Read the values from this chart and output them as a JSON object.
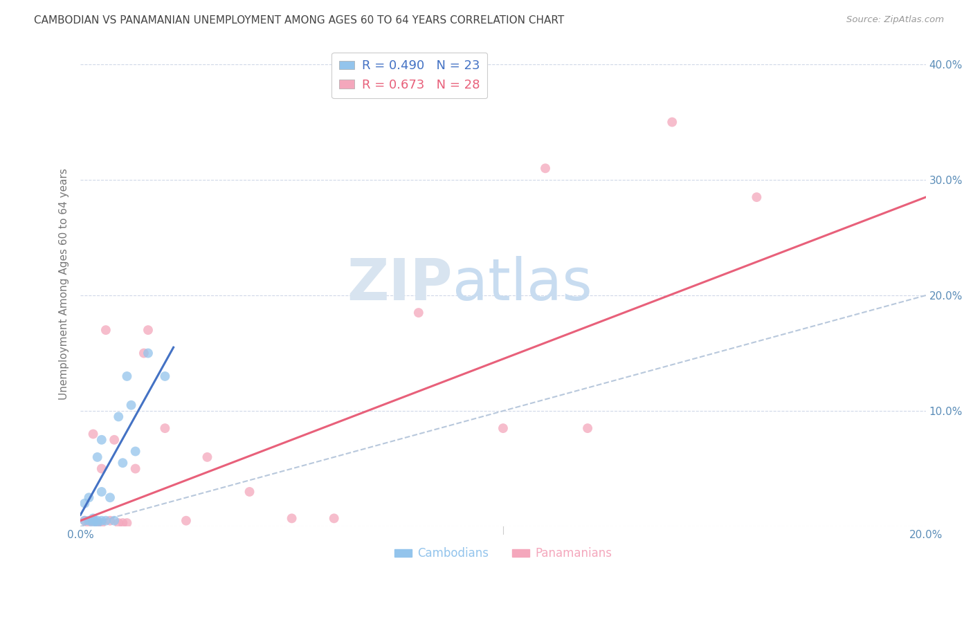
{
  "title": "CAMBODIAN VS PANAMANIAN UNEMPLOYMENT AMONG AGES 60 TO 64 YEARS CORRELATION CHART",
  "source": "Source: ZipAtlas.com",
  "ylabel": "Unemployment Among Ages 60 to 64 years",
  "xlim": [
    0.0,
    0.2
  ],
  "ylim": [
    0.0,
    0.42
  ],
  "yticks": [
    0.0,
    0.1,
    0.2,
    0.3,
    0.4
  ],
  "yticklabels_right": [
    "",
    "10.0%",
    "20.0%",
    "30.0%",
    "40.0%"
  ],
  "xtick_positions": [
    0.0,
    0.05,
    0.1,
    0.15,
    0.2
  ],
  "xticklabels": [
    "0.0%",
    "",
    "",
    "",
    "20.0%"
  ],
  "cambodian_R": 0.49,
  "cambodian_N": 23,
  "panamanian_R": 0.673,
  "panamanian_N": 28,
  "cambodian_color": "#93C4EC",
  "panamanian_color": "#F4A7BC",
  "cambodian_line_color": "#4472C4",
  "panamanian_line_color": "#E8607A",
  "diagonal_color": "#B8C8DC",
  "tick_color": "#5B8DB8",
  "background_color": "#FFFFFF",
  "grid_color": "#D0D8E8",
  "cambodian_x": [
    0.001,
    0.001,
    0.002,
    0.002,
    0.003,
    0.003,
    0.003,
    0.004,
    0.004,
    0.004,
    0.005,
    0.005,
    0.005,
    0.006,
    0.007,
    0.008,
    0.009,
    0.01,
    0.011,
    0.012,
    0.013,
    0.016,
    0.02
  ],
  "cambodian_y": [
    0.005,
    0.02,
    0.005,
    0.025,
    0.003,
    0.007,
    0.005,
    0.06,
    0.003,
    0.005,
    0.075,
    0.03,
    0.005,
    0.005,
    0.025,
    0.005,
    0.095,
    0.055,
    0.13,
    0.105,
    0.065,
    0.15,
    0.13
  ],
  "panamanian_x": [
    0.001,
    0.002,
    0.003,
    0.003,
    0.004,
    0.005,
    0.005,
    0.006,
    0.007,
    0.008,
    0.009,
    0.01,
    0.011,
    0.013,
    0.015,
    0.016,
    0.02,
    0.025,
    0.03,
    0.04,
    0.05,
    0.06,
    0.08,
    0.1,
    0.11,
    0.12,
    0.14,
    0.16
  ],
  "panamanian_y": [
    0.005,
    0.003,
    0.005,
    0.08,
    0.003,
    0.003,
    0.05,
    0.17,
    0.005,
    0.075,
    0.003,
    0.003,
    0.003,
    0.05,
    0.15,
    0.17,
    0.085,
    0.005,
    0.06,
    0.03,
    0.007,
    0.007,
    0.185,
    0.085,
    0.31,
    0.085,
    0.35,
    0.285
  ],
  "cambodian_line_x": [
    0.0,
    0.022
  ],
  "cambodian_line_y": [
    0.01,
    0.155
  ],
  "panamanian_line_x": [
    0.0,
    0.2
  ],
  "panamanian_line_y": [
    0.005,
    0.285
  ],
  "marker_size": 100,
  "watermark_text_zip": "ZIP",
  "watermark_text_atlas": "atlas",
  "watermark_color_zip": "#D8E4F0",
  "watermark_color_atlas": "#C8DCF0",
  "watermark_fontsize": 60
}
